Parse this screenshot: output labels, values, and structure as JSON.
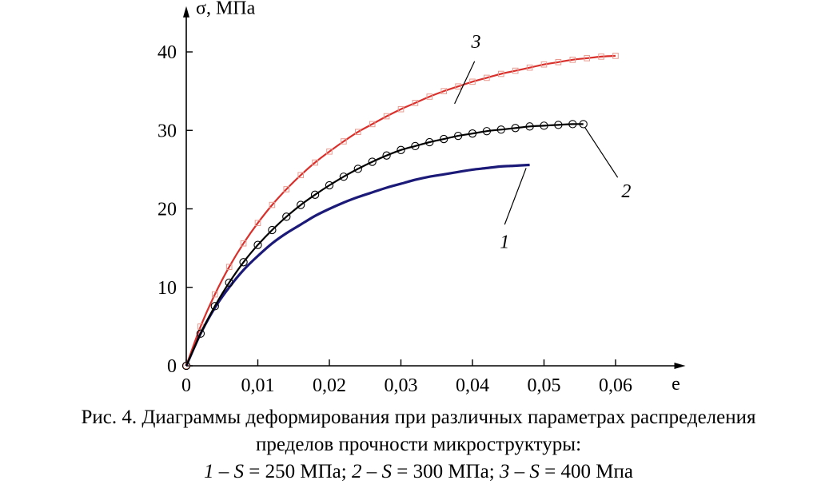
{
  "chart_data": {
    "type": "line",
    "xlabel": "e",
    "ylabel": "σ, МПа",
    "xlim": [
      0,
      0.07
    ],
    "ylim": [
      0,
      44
    ],
    "xticks": [
      {
        "value": 0,
        "label": "0"
      },
      {
        "value": 0.01,
        "label": "0,01"
      },
      {
        "value": 0.02,
        "label": "0,02"
      },
      {
        "value": 0.03,
        "label": "0,03"
      },
      {
        "value": 0.04,
        "label": "0,04"
      },
      {
        "value": 0.05,
        "label": "0,05"
      },
      {
        "value": 0.06,
        "label": "0,06"
      }
    ],
    "yticks": [
      {
        "value": 0,
        "label": "0"
      },
      {
        "value": 10,
        "label": "10"
      },
      {
        "value": 20,
        "label": "20"
      },
      {
        "value": 30,
        "label": "30"
      },
      {
        "value": 40,
        "label": "40"
      }
    ],
    "grid": false,
    "series": [
      {
        "name": "1",
        "color": "#1c1a78",
        "marker": "none",
        "x": [
          0,
          0.002,
          0.004,
          0.006,
          0.008,
          0.01,
          0.012,
          0.014,
          0.016,
          0.018,
          0.02,
          0.022,
          0.024,
          0.026,
          0.028,
          0.03,
          0.032,
          0.034,
          0.036,
          0.038,
          0.04,
          0.042,
          0.044,
          0.046,
          0.048
        ],
        "y": [
          0,
          4.1,
          7.4,
          10.0,
          12.2,
          14.0,
          15.6,
          16.9,
          18.0,
          19.1,
          20.0,
          20.8,
          21.5,
          22.1,
          22.7,
          23.2,
          23.7,
          24.1,
          24.4,
          24.7,
          25.0,
          25.2,
          25.4,
          25.5,
          25.6
        ]
      },
      {
        "name": "2",
        "color": "#000000",
        "marker": "circle",
        "x": [
          0,
          0.002,
          0.004,
          0.006,
          0.008,
          0.01,
          0.012,
          0.014,
          0.016,
          0.018,
          0.02,
          0.022,
          0.024,
          0.026,
          0.028,
          0.03,
          0.032,
          0.034,
          0.036,
          0.038,
          0.04,
          0.042,
          0.044,
          0.046,
          0.048,
          0.05,
          0.052,
          0.054,
          0.0555
        ],
        "y": [
          0,
          4.1,
          7.6,
          10.6,
          13.2,
          15.4,
          17.3,
          19.0,
          20.5,
          21.8,
          23.0,
          24.1,
          25.1,
          26.0,
          26.8,
          27.5,
          28.0,
          28.5,
          28.9,
          29.3,
          29.6,
          29.9,
          30.1,
          30.3,
          30.5,
          30.6,
          30.7,
          30.8,
          30.8
        ]
      },
      {
        "name": "3",
        "color": "#d9302c",
        "marker": "square",
        "x": [
          0,
          0.002,
          0.004,
          0.006,
          0.008,
          0.01,
          0.012,
          0.014,
          0.016,
          0.018,
          0.02,
          0.022,
          0.024,
          0.026,
          0.028,
          0.03,
          0.032,
          0.034,
          0.036,
          0.038,
          0.04,
          0.042,
          0.044,
          0.046,
          0.048,
          0.05,
          0.052,
          0.054,
          0.056,
          0.058,
          0.06
        ],
        "y": [
          0,
          5.0,
          9.1,
          12.6,
          15.6,
          18.2,
          20.5,
          22.5,
          24.3,
          25.9,
          27.3,
          28.6,
          29.8,
          30.8,
          31.8,
          32.7,
          33.5,
          34.3,
          35.0,
          35.6,
          36.2,
          36.7,
          37.2,
          37.6,
          38.0,
          38.4,
          38.7,
          39.0,
          39.2,
          39.4,
          39.5
        ]
      }
    ],
    "annotations": [
      {
        "text": "1",
        "series": "1"
      },
      {
        "text": "2",
        "series": "2"
      },
      {
        "text": "3",
        "series": "3"
      }
    ]
  },
  "caption": {
    "line1": "Рис. 4. Диаграммы деформирования при различных параметрах распределения",
    "line2": "пределов прочности микроструктуры:",
    "line3_parts": [
      {
        "text": "1",
        "italic": true
      },
      {
        "text": " – ",
        "italic": false
      },
      {
        "text": "S",
        "italic": true
      },
      {
        "text": " = 250 МПа; ",
        "italic": false
      },
      {
        "text": "2",
        "italic": true
      },
      {
        "text": " – ",
        "italic": false
      },
      {
        "text": "S",
        "italic": true
      },
      {
        "text": " = 300 МПа; ",
        "italic": false
      },
      {
        "text": "3",
        "italic": true
      },
      {
        "text": " – ",
        "italic": false
      },
      {
        "text": "S",
        "italic": true
      },
      {
        "text": " = 400 Мпа",
        "italic": false
      }
    ]
  }
}
